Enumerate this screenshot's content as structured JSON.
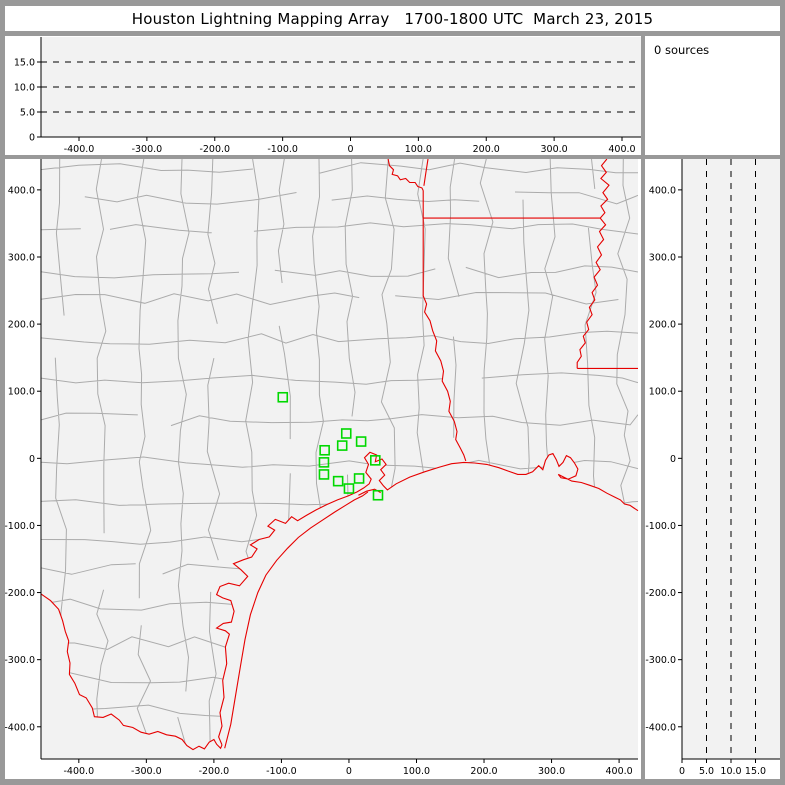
{
  "window": {
    "title": "Houston Lightning Mapping Array   1700-1800 UTC  March 23, 2015"
  },
  "sources_panel": {
    "label": "0 sources"
  },
  "colors": {
    "frame": "#999999",
    "panel_bg": "#ffffff",
    "plot_bg": "#f2f2f2",
    "axis": "#000000",
    "grid_dash": "#000000",
    "county": "#ababab",
    "state_border": "#e60000",
    "station": "#00d800"
  },
  "chart_data": [
    {
      "type": "scatter",
      "id": "altitude_overview_panel",
      "title": "",
      "sources_plotted": 0,
      "x_range": [
        -456,
        428
      ],
      "y_range": [
        0,
        20
      ],
      "x_tick_values": [
        -400,
        -300,
        -200,
        -100,
        0,
        100,
        200,
        300,
        400
      ],
      "x_tick_labels": [
        "-400.0",
        "-300.0",
        "-200.0",
        "-100.0",
        "0",
        "100.0",
        "200.0",
        "300.0",
        "400.0"
      ],
      "y_tick_values": [
        0,
        5,
        10,
        15
      ],
      "y_tick_labels": [
        "0",
        "5.0",
        "10.0",
        "15.0"
      ],
      "grid_y": [
        5,
        10,
        15
      ],
      "grid_x": [],
      "points": []
    },
    {
      "type": "map",
      "id": "plan_view_map",
      "units": "km",
      "x_range": [
        -456,
        428
      ],
      "y_range": [
        -448,
        446
      ],
      "x_tick_values": [
        -400,
        -300,
        -200,
        -100,
        0,
        100,
        200,
        300,
        400
      ],
      "x_tick_labels": [
        "-400.0",
        "-300.0",
        "-200.0",
        "-100.0",
        "0",
        "100.0",
        "200.0",
        "300.0",
        "400.0"
      ],
      "y_tick_values": [
        400,
        300,
        200,
        100,
        0,
        -100,
        -200,
        -300,
        -400
      ],
      "y_tick_labels": [
        "400.0",
        "300.0",
        "200.0",
        "100.0",
        "0",
        "-100.0",
        "-200.0",
        "-300.0",
        "-400.0"
      ],
      "grid_x": [],
      "grid_y": [],
      "stations_km": [
        [
          -98,
          91
        ],
        [
          -4,
          37
        ],
        [
          -10,
          19
        ],
        [
          -36,
          12
        ],
        [
          18,
          25
        ],
        [
          -37,
          -6
        ],
        [
          39,
          -3
        ],
        [
          -37,
          -24
        ],
        [
          -16,
          -34
        ],
        [
          15,
          -30
        ],
        [
          0,
          -45
        ],
        [
          43,
          -55
        ]
      ],
      "geometry_km": {
        "rio_grande": [
          [
            -456,
            -202
          ],
          [
            -442,
            -212
          ],
          [
            -430,
            -225
          ],
          [
            -424,
            -242
          ],
          [
            -420,
            -258
          ],
          [
            -415,
            -272
          ],
          [
            -417,
            -288
          ],
          [
            -413,
            -305
          ],
          [
            -414,
            -322
          ],
          [
            -406,
            -335
          ],
          [
            -399,
            -352
          ],
          [
            -389,
            -357
          ],
          [
            -380,
            -372
          ],
          [
            -377,
            -385
          ],
          [
            -364,
            -386
          ],
          [
            -352,
            -381
          ],
          [
            -340,
            -390
          ],
          [
            -334,
            -398
          ],
          [
            -320,
            -401
          ],
          [
            -308,
            -408
          ],
          [
            -296,
            -411
          ],
          [
            -283,
            -407
          ],
          [
            -270,
            -412
          ],
          [
            -257,
            -414
          ],
          [
            -247,
            -419
          ],
          [
            -240,
            -428
          ],
          [
            -231,
            -434
          ],
          [
            -222,
            -429
          ],
          [
            -214,
            -433
          ],
          [
            -207,
            -423
          ],
          [
            -200,
            -419
          ],
          [
            -196,
            -426
          ],
          [
            -190,
            -432
          ],
          [
            -188,
            -427
          ]
        ],
        "coast": [
          [
            -188,
            -427
          ],
          [
            -193,
            -415
          ],
          [
            -188,
            -399
          ],
          [
            -191,
            -379
          ],
          [
            -185,
            -356
          ],
          [
            -187,
            -331
          ],
          [
            -181,
            -306
          ],
          [
            -183,
            -281
          ],
          [
            -177,
            -262
          ],
          [
            -183,
            -257
          ],
          [
            -196,
            -253
          ],
          [
            -186,
            -246
          ],
          [
            -174,
            -244
          ],
          [
            -170,
            -228
          ],
          [
            -175,
            -212
          ],
          [
            -187,
            -208
          ],
          [
            -196,
            -203
          ],
          [
            -191,
            -191
          ],
          [
            -178,
            -186
          ],
          [
            -162,
            -190
          ],
          [
            -150,
            -176
          ],
          [
            -160,
            -166
          ],
          [
            -171,
            -157
          ],
          [
            -156,
            -151
          ],
          [
            -144,
            -147
          ],
          [
            -136,
            -135
          ],
          [
            -146,
            -129
          ],
          [
            -133,
            -121
          ],
          [
            -118,
            -117
          ],
          [
            -110,
            -107
          ],
          [
            -120,
            -101
          ],
          [
            -109,
            -91
          ],
          [
            -94,
            -97
          ],
          [
            -85,
            -87
          ],
          [
            -76,
            -93
          ],
          [
            -63,
            -85
          ],
          [
            -49,
            -77
          ],
          [
            -33,
            -69
          ],
          [
            -17,
            -62
          ],
          [
            -1,
            -56
          ],
          [
            12,
            -50
          ],
          [
            22,
            -44
          ],
          [
            30,
            -38
          ],
          [
            33,
            -31
          ],
          [
            25,
            -21
          ],
          [
            29,
            -9
          ],
          [
            23,
            1
          ],
          [
            31,
            9
          ],
          [
            41,
            5
          ],
          [
            39,
            -5
          ],
          [
            49,
            -1
          ],
          [
            55,
            -9
          ],
          [
            47,
            -17
          ],
          [
            53,
            -25
          ],
          [
            45,
            -33
          ],
          [
            51,
            -41
          ],
          [
            57,
            -47
          ],
          [
            70,
            -38
          ],
          [
            90,
            -28
          ],
          [
            112,
            -20
          ],
          [
            134,
            -13
          ],
          [
            152,
            -8
          ],
          [
            170,
            -6
          ],
          [
            186,
            -7
          ],
          [
            204,
            -9
          ],
          [
            222,
            -14
          ],
          [
            236,
            -19
          ],
          [
            250,
            -24
          ],
          [
            262,
            -24
          ],
          [
            272,
            -20
          ],
          [
            281,
            -11
          ],
          [
            287,
            -17
          ],
          [
            291,
            -3
          ],
          [
            296,
            5
          ],
          [
            302,
            7
          ],
          [
            307,
            -2
          ],
          [
            311,
            -12
          ],
          [
            317,
            -6
          ],
          [
            322,
            4
          ],
          [
            328,
            1
          ],
          [
            334,
            -7
          ],
          [
            339,
            -16
          ],
          [
            336,
            -26
          ],
          [
            325,
            -31
          ],
          [
            314,
            -29
          ],
          [
            310,
            -24
          ],
          [
            318,
            -28
          ],
          [
            330,
            -34
          ],
          [
            344,
            -36
          ],
          [
            356,
            -40
          ],
          [
            370,
            -45
          ],
          [
            382,
            -52
          ],
          [
            394,
            -58
          ],
          [
            402,
            -62
          ],
          [
            408,
            -68
          ],
          [
            416,
            -70
          ],
          [
            422,
            -74
          ],
          [
            428,
            -78
          ]
        ],
        "barrier_island_1": [
          [
            -184,
            -432
          ],
          [
            -175,
            -396
          ],
          [
            -168,
            -354
          ],
          [
            -161,
            -312
          ],
          [
            -154,
            -270
          ],
          [
            -146,
            -233
          ],
          [
            -135,
            -200
          ],
          [
            -123,
            -174
          ],
          [
            -107,
            -152
          ],
          [
            -91,
            -134
          ],
          [
            -75,
            -118
          ],
          [
            -57,
            -104
          ],
          [
            -39,
            -92
          ],
          [
            -21,
            -80
          ],
          [
            -5,
            -70
          ],
          [
            8,
            -62
          ],
          [
            20,
            -56
          ],
          [
            28,
            -50
          ]
        ],
        "barrier_island_2": [
          [
            14,
            -55
          ],
          [
            26,
            -49
          ],
          [
            38,
            -46
          ],
          [
            47,
            -51
          ]
        ],
        "red_river": [
          [
            58,
            446
          ],
          [
            60,
            436
          ],
          [
            66,
            430
          ],
          [
            64,
            423
          ],
          [
            72,
            421
          ],
          [
            76,
            415
          ],
          [
            84,
            417
          ],
          [
            90,
            411
          ],
          [
            98,
            411
          ],
          [
            102,
            405
          ],
          [
            108,
            403
          ],
          [
            110,
            399
          ]
        ],
        "ok_ar_border": [
          [
            117,
            446
          ],
          [
            114,
            426
          ],
          [
            111,
            406
          ]
        ],
        "tx_ar_border": [
          [
            110,
            399
          ],
          [
            110,
            358
          ]
        ],
        "ar_la_border": [
          [
            110,
            358
          ],
          [
            372,
            358
          ]
        ],
        "mississippi_river": [
          [
            382,
            446
          ],
          [
            374,
            436
          ],
          [
            381,
            426
          ],
          [
            373,
            417
          ],
          [
            385,
            407
          ],
          [
            376,
            396
          ],
          [
            383,
            386
          ],
          [
            373,
            376
          ],
          [
            379,
            366
          ],
          [
            372,
            358
          ],
          [
            380,
            348
          ],
          [
            371,
            338
          ],
          [
            377,
            326
          ],
          [
            368,
            315
          ],
          [
            374,
            303
          ],
          [
            366,
            292
          ],
          [
            372,
            281
          ],
          [
            363,
            270
          ],
          [
            368,
            258
          ],
          [
            360,
            247
          ],
          [
            364,
            236
          ],
          [
            356,
            225
          ],
          [
            360,
            214
          ],
          [
            352,
            203
          ],
          [
            355,
            192
          ],
          [
            347,
            182
          ],
          [
            350,
            172
          ],
          [
            342,
            162
          ],
          [
            344,
            152
          ],
          [
            338,
            143
          ],
          [
            338,
            134
          ]
        ],
        "la_ms_border": [
          [
            338,
            134
          ],
          [
            428,
            134
          ]
        ],
        "tx_la_border": [
          [
            110,
            358
          ],
          [
            110,
            300
          ],
          [
            110,
            242
          ],
          [
            115,
            230
          ],
          [
            112,
            218
          ],
          [
            120,
            205
          ],
          [
            124,
            190
          ],
          [
            130,
            175
          ],
          [
            128,
            160
          ],
          [
            136,
            145
          ],
          [
            140,
            130
          ],
          [
            138,
            115
          ],
          [
            146,
            100
          ],
          [
            150,
            85
          ],
          [
            148,
            70
          ],
          [
            156,
            55
          ],
          [
            160,
            40
          ],
          [
            158,
            28
          ],
          [
            165,
            15
          ],
          [
            170,
            5
          ],
          [
            173,
            -4
          ]
        ]
      }
    },
    {
      "type": "scatter",
      "id": "altitude_vs_northsouth_panel",
      "title": "",
      "sources_plotted": 0,
      "x_range": [
        0,
        20
      ],
      "y_range": [
        -448,
        446
      ],
      "x_tick_values": [
        0,
        5,
        10,
        15
      ],
      "x_tick_labels": [
        "0",
        "5.0",
        "10.0",
        "15.0"
      ],
      "y_tick_values": [
        400,
        300,
        200,
        100,
        0,
        -100,
        -200,
        -300,
        -400
      ],
      "y_tick_labels": [
        "400.0",
        "300.0",
        "200.0",
        "100.0",
        "0",
        "-100.0",
        "-200.0",
        "-300.0",
        "-400.0"
      ],
      "grid_x": [
        5,
        10,
        15
      ],
      "grid_y": [],
      "points": []
    }
  ]
}
